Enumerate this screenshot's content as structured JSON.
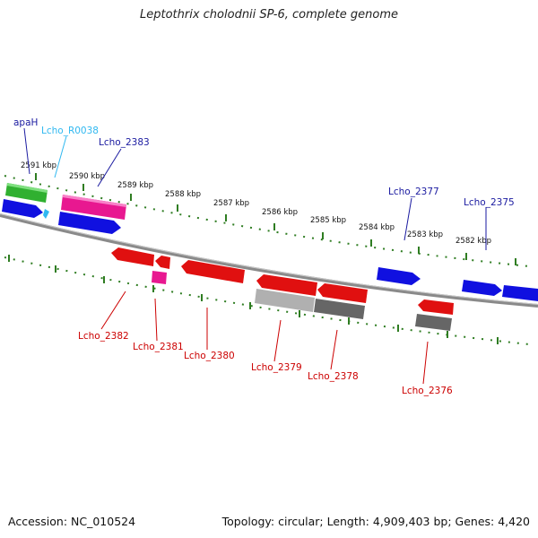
{
  "title": "Leptothrix cholodnii SP-6, complete genome",
  "footer": {
    "accession": "Accession: NC_010524",
    "info": "Topology: circular; Length: 4,909,403 bp; Genes: 4,420"
  },
  "scale_labels": [
    "2591 kbp",
    "2590 kbp",
    "2589 kbp",
    "2588 kbp",
    "2587 kbp",
    "2586 kbp",
    "2585 kbp",
    "2584 kbp",
    "2583 kbp",
    "2582 kbp"
  ],
  "colors": {
    "backbone": "#8a8a8a",
    "ticks": "#2f7d22",
    "blue": "#1010e0",
    "red": "#e01010",
    "magenta": "#e81890",
    "green": "#30b030",
    "cyan": "#30b8f0",
    "gray_light": "#b0b0b0",
    "gray_dark": "#666666"
  },
  "labels_top": [
    {
      "text": "apaH",
      "color": "#1a1aa0"
    },
    {
      "text": "Lcho_R0038",
      "color": "#30b8f0"
    },
    {
      "text": "Lcho_2383",
      "color": "#1a1aa0"
    },
    {
      "text": "Lcho_2377",
      "color": "#1a1aa0"
    },
    {
      "text": "Lcho_2375",
      "color": "#1a1aa0"
    }
  ],
  "labels_bottom": [
    {
      "text": "Lcho_2382",
      "color": "#cc0000"
    },
    {
      "text": "Lcho_2381",
      "color": "#cc0000"
    },
    {
      "text": "Lcho_2380",
      "color": "#cc0000"
    },
    {
      "text": "Lcho_2379",
      "color": "#cc0000"
    },
    {
      "text": "Lcho_2378",
      "color": "#cc0000"
    },
    {
      "text": "Lcho_2376",
      "color": "#cc0000"
    }
  ]
}
